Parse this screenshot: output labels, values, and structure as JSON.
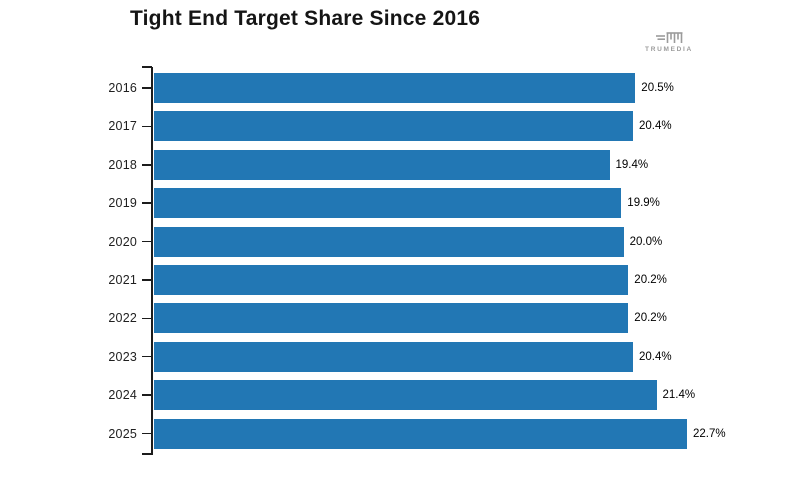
{
  "chart_data": {
    "type": "bar",
    "orientation": "horizontal",
    "title": "Tight End Target Share Since 2016",
    "categories": [
      "2016",
      "2017",
      "2018",
      "2019",
      "2020",
      "2021",
      "2022",
      "2023",
      "2024",
      "2025"
    ],
    "values": [
      20.5,
      20.4,
      19.4,
      19.9,
      20.0,
      20.2,
      20.2,
      20.4,
      21.4,
      22.7
    ],
    "value_labels": [
      "20.5%",
      "20.4%",
      "19.4%",
      "19.9%",
      "20.0%",
      "20.2%",
      "20.2%",
      "20.4%",
      "21.4%",
      "22.7%"
    ],
    "xlabel": "",
    "ylabel": "",
    "xlim": [
      0,
      27.6
    ],
    "grid": false,
    "legend": false,
    "value_labels_position": "outside-end",
    "bar_color": "#2277b4",
    "axis_color": "#1c1c1c"
  },
  "branding": {
    "logo_text": "TRUMEDIA"
  }
}
